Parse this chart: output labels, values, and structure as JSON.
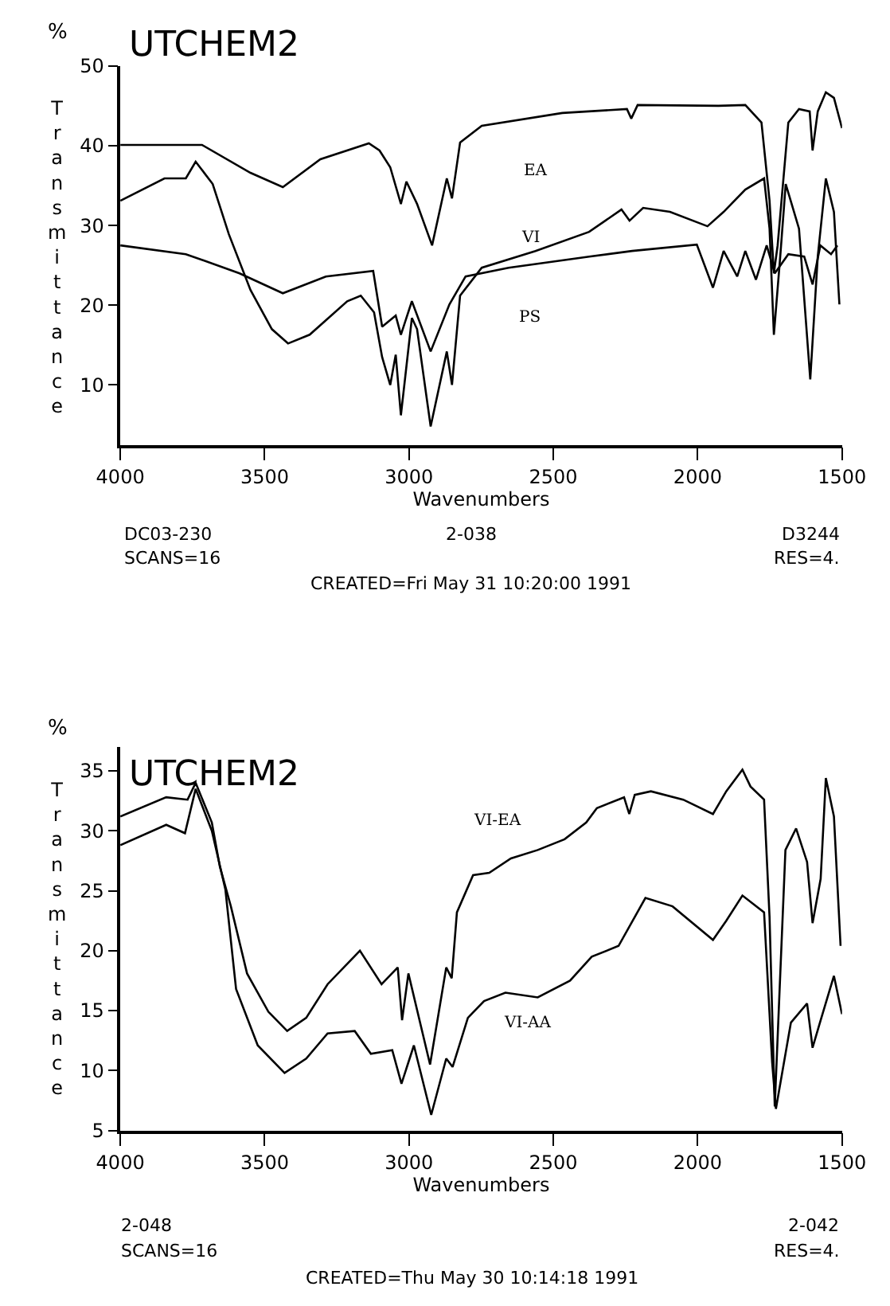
{
  "chart_data": [
    {
      "type": "line",
      "xlabel": "Wavenumbers",
      "ylabel": "Transmittance",
      "xlim": [
        4000,
        1500
      ],
      "xticks": [
        4000,
        3500,
        3000,
        2500,
        2000,
        1500
      ],
      "ylim": [
        2.5,
        50
      ],
      "yticks": [
        10,
        20,
        30,
        40,
        50
      ],
      "grid": false,
      "legend": false,
      "marker": "none",
      "line_style": "solid",
      "series": [
        {
          "name": "EA",
          "color": "#000000",
          "x": [
            4000,
            3717,
            3549,
            3437,
            3307,
            3139,
            3102,
            3065,
            3028,
            3009,
            2972,
            2920,
            2869,
            2851,
            2823,
            2748,
            2469,
            2245,
            2230,
            2208,
            1928,
            1835,
            1779,
            1751,
            1736,
            1723,
            1686,
            1649,
            1612,
            1602,
            1584,
            1556,
            1528,
            1500
          ],
          "values": [
            40.1,
            40.1,
            36.6,
            34.8,
            38.3,
            40.3,
            39.4,
            37.3,
            32.7,
            35.5,
            32.7,
            27.5,
            35.9,
            33.4,
            40.4,
            42.5,
            44.1,
            44.6,
            43.4,
            45.1,
            45.0,
            45.1,
            42.9,
            33.1,
            24.0,
            27.5,
            42.9,
            44.6,
            44.3,
            39.4,
            44.3,
            46.7,
            46.0,
            42.2
          ]
        },
        {
          "name": "VI",
          "color": "#000000",
          "x": [
            4000,
            3847,
            3773,
            3739,
            3680,
            3624,
            3549,
            3475,
            3419,
            3344,
            3214,
            3167,
            3121,
            3093,
            3065,
            3046,
            3028,
            2990,
            2972,
            2925,
            2869,
            2851,
            2823,
            2748,
            2562,
            2376,
            2264,
            2236,
            2189,
            2096,
            1966,
            1910,
            1835,
            1770,
            1751,
            1736,
            1714,
            1695,
            1649,
            1610,
            1584,
            1556,
            1528,
            1509
          ],
          "values": [
            33.1,
            35.9,
            35.9,
            38.0,
            35.2,
            28.9,
            21.9,
            17.0,
            15.2,
            16.3,
            20.5,
            21.2,
            19.1,
            13.5,
            10.0,
            13.8,
            6.2,
            18.4,
            17.0,
            4.8,
            14.2,
            10.0,
            21.2,
            24.7,
            26.8,
            29.2,
            32.0,
            30.6,
            32.2,
            31.7,
            29.9,
            31.7,
            34.5,
            35.9,
            29.6,
            16.3,
            26.1,
            35.2,
            29.6,
            10.7,
            26.1,
            35.9,
            31.7,
            20.1
          ]
        },
        {
          "name": "PS",
          "color": "#000000",
          "x": [
            4000,
            3773,
            3587,
            3437,
            3288,
            3124,
            3093,
            3046,
            3028,
            2990,
            2925,
            2860,
            2804,
            2655,
            2376,
            2227,
            2003,
            1947,
            1910,
            1863,
            1835,
            1798,
            1761,
            1733,
            1686,
            1631,
            1602,
            1575,
            1538,
            1516
          ],
          "values": [
            27.5,
            26.4,
            24.0,
            21.5,
            23.6,
            24.3,
            17.3,
            18.7,
            16.3,
            20.5,
            14.2,
            20.1,
            23.6,
            24.7,
            26.1,
            26.8,
            27.6,
            22.2,
            26.8,
            23.6,
            26.8,
            23.2,
            27.5,
            24.0,
            26.4,
            26.1,
            22.6,
            27.5,
            26.4,
            27.5
          ]
        }
      ],
      "annotations": [
        "%",
        "UTCHEM2",
        "DC03-230",
        "2-038",
        "D3244",
        "SCANS=16",
        "RES=4.",
        "CREATED=Fri May 31 10:20:00 1991"
      ]
    },
    {
      "type": "line",
      "xlabel": "Wavenumbers",
      "ylabel": "Transmittance",
      "xlim": [
        4000,
        1500
      ],
      "xticks": [
        4000,
        3500,
        3000,
        2500,
        2000,
        1500
      ],
      "ylim": [
        5,
        37
      ],
      "yticks": [
        5,
        10,
        15,
        20,
        25,
        30,
        35
      ],
      "grid": false,
      "legend": false,
      "marker": "none",
      "line_style": "solid",
      "series": [
        {
          "name": "VI-EA",
          "color": "#000000",
          "x": [
            4000,
            3841,
            3767,
            3739,
            3683,
            3655,
            3617,
            3561,
            3487,
            3422,
            3356,
            3282,
            3170,
            3095,
            3039,
            3024,
            3002,
            2927,
            2871,
            2852,
            2834,
            2778,
            2722,
            2647,
            2554,
            2461,
            2386,
            2349,
            2255,
            2237,
            2218,
            2162,
            2050,
            1947,
            1901,
            1845,
            1817,
            1770,
            1751,
            1733,
            1696,
            1659,
            1621,
            1602,
            1574,
            1556,
            1528,
            1505
          ],
          "values": [
            31.2,
            32.8,
            32.6,
            34.0,
            30.7,
            27.0,
            23.7,
            18.1,
            14.9,
            13.3,
            14.4,
            17.2,
            20.0,
            17.2,
            18.6,
            14.2,
            18.1,
            10.5,
            18.6,
            17.7,
            23.2,
            26.3,
            26.5,
            27.7,
            28.4,
            29.3,
            30.7,
            31.9,
            32.8,
            31.4,
            33.0,
            33.3,
            32.6,
            31.4,
            33.3,
            35.1,
            33.7,
            32.6,
            22.8,
            7.0,
            28.4,
            30.2,
            27.4,
            22.3,
            26.0,
            34.4,
            31.2,
            20.4
          ]
        },
        {
          "name": "VI-AA",
          "color": "#000000",
          "x": [
            4000,
            3841,
            3776,
            3739,
            3683,
            3636,
            3599,
            3524,
            3431,
            3356,
            3282,
            3188,
            3132,
            3058,
            3026,
            2983,
            2923,
            2871,
            2849,
            2796,
            2740,
            2666,
            2554,
            2442,
            2367,
            2274,
            2181,
            2087,
            1947,
            1901,
            1845,
            1770,
            1742,
            1729,
            1677,
            1621,
            1602,
            1574,
            1528,
            1500
          ],
          "values": [
            28.8,
            30.5,
            29.8,
            33.5,
            30.0,
            25.1,
            16.8,
            12.1,
            9.8,
            11.0,
            13.1,
            13.3,
            11.4,
            11.7,
            8.9,
            12.1,
            6.3,
            11.0,
            10.3,
            14.4,
            15.8,
            16.5,
            16.1,
            17.5,
            19.5,
            20.4,
            24.4,
            23.7,
            20.9,
            22.5,
            24.6,
            23.2,
            10.7,
            6.8,
            14.0,
            15.6,
            11.9,
            14.2,
            17.9,
            14.7
          ]
        }
      ],
      "annotations": [
        "%",
        "UTCHEM2",
        "2-048",
        "2-042",
        "SCANS=16",
        "RES=4.",
        "CREATED=Thu May 30 10:14:18 1991"
      ]
    }
  ]
}
